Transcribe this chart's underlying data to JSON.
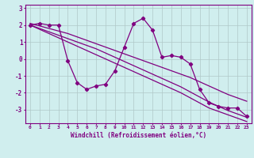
{
  "x": [
    0,
    1,
    2,
    3,
    4,
    5,
    6,
    7,
    8,
    9,
    10,
    11,
    12,
    13,
    14,
    15,
    16,
    17,
    18,
    19,
    20,
    21,
    22,
    23
  ],
  "y_main": [
    2.0,
    2.1,
    2.0,
    2.0,
    -0.1,
    -1.4,
    -1.8,
    -1.6,
    -1.5,
    -0.7,
    0.7,
    2.1,
    2.4,
    1.7,
    0.1,
    0.2,
    0.1,
    -0.3,
    -1.8,
    -2.6,
    -2.8,
    -2.9,
    -2.9,
    -3.4
  ],
  "y_trend1": [
    2.1,
    1.95,
    1.8,
    1.65,
    1.5,
    1.3,
    1.1,
    0.9,
    0.7,
    0.5,
    0.3,
    0.1,
    -0.1,
    -0.3,
    -0.5,
    -0.7,
    -0.9,
    -1.1,
    -1.35,
    -1.6,
    -1.85,
    -2.1,
    -2.3,
    -2.5
  ],
  "y_trend2": [
    2.0,
    1.8,
    1.6,
    1.4,
    1.2,
    1.0,
    0.8,
    0.6,
    0.35,
    0.1,
    -0.15,
    -0.4,
    -0.65,
    -0.9,
    -1.15,
    -1.4,
    -1.65,
    -1.95,
    -2.25,
    -2.55,
    -2.8,
    -3.05,
    -3.25,
    -3.45
  ],
  "y_trend3": [
    2.0,
    1.75,
    1.5,
    1.25,
    1.0,
    0.75,
    0.5,
    0.25,
    0.0,
    -0.25,
    -0.5,
    -0.75,
    -1.0,
    -1.25,
    -1.5,
    -1.75,
    -2.0,
    -2.3,
    -2.6,
    -2.9,
    -3.1,
    -3.3,
    -3.5,
    -3.7
  ],
  "line_color": "#800080",
  "bg_color": "#d0eeee",
  "grid_color": "#b0c8c8",
  "xlabel": "Windchill (Refroidissement éolien,°C)",
  "ylim": [
    -3.8,
    3.2
  ],
  "xlim": [
    -0.5,
    23.5
  ],
  "yticks": [
    -3,
    -2,
    -1,
    0,
    1,
    2,
    3
  ],
  "xticks": [
    0,
    1,
    2,
    3,
    4,
    5,
    6,
    7,
    8,
    9,
    10,
    11,
    12,
    13,
    14,
    15,
    16,
    17,
    18,
    19,
    20,
    21,
    22,
    23
  ]
}
